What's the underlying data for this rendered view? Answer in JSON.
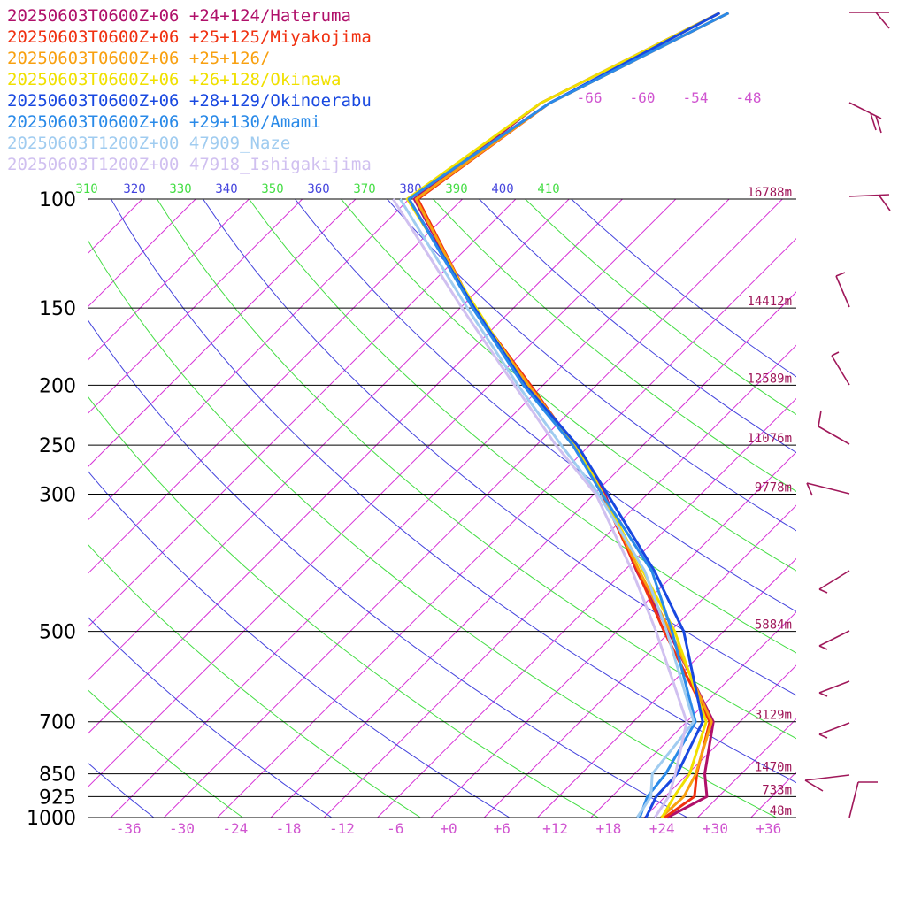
{
  "chart_data": {
    "type": "line",
    "title": "",
    "xlabel": "",
    "ylabel": "",
    "x_axis": {
      "ticks": [
        "-36",
        "-30",
        "-24",
        "-18",
        "-12",
        "-6",
        "+0",
        "+6",
        "+12",
        "+18",
        "+24",
        "+30",
        "+36"
      ],
      "values": [
        -36,
        -30,
        -24,
        -18,
        -12,
        -6,
        0,
        6,
        12,
        18,
        24,
        30,
        36
      ],
      "range": [
        -40,
        40
      ]
    },
    "pressure_levels": [
      {
        "p": 100,
        "label": "100",
        "height": "16788m"
      },
      {
        "p": 150,
        "label": "150",
        "height": "14412m"
      },
      {
        "p": 200,
        "label": "200",
        "height": "12589m"
      },
      {
        "p": 250,
        "label": "250",
        "height": "11076m"
      },
      {
        "p": 300,
        "label": "300",
        "height": "9778m"
      },
      {
        "p": 500,
        "label": "500",
        "height": "5884m"
      },
      {
        "p": 700,
        "label": "700",
        "height": "3129m"
      },
      {
        "p": 850,
        "label": "850",
        "height": "1470m"
      },
      {
        "p": 925,
        "label": "925",
        "height": "733m"
      },
      {
        "p": 1000,
        "label": "1000",
        "height": "48m"
      }
    ],
    "mixing_ratio_labels": [
      "-66",
      "-60",
      "-54",
      "-48"
    ],
    "theta_labels": [
      {
        "text": "310",
        "color": "#44dd44"
      },
      {
        "text": "320",
        "color": "#4444dd"
      },
      {
        "text": "330",
        "color": "#44dd44"
      },
      {
        "text": "340",
        "color": "#4444dd"
      },
      {
        "text": "350",
        "color": "#44dd44"
      },
      {
        "text": "360",
        "color": "#4444dd"
      },
      {
        "text": "370",
        "color": "#44dd44"
      },
      {
        "text": "380",
        "color": "#4444dd"
      },
      {
        "text": "390",
        "color": "#44dd44"
      },
      {
        "text": "400",
        "color": "#4444dd"
      },
      {
        "text": "410",
        "color": "#44dd44"
      }
    ],
    "grid": true,
    "legend_position": "top-left",
    "series": [
      {
        "name": "20250603T0600Z+06 +24+124/Hateruma",
        "color": "#b0106a",
        "points": [
          [
            1000,
            24.6
          ],
          [
            925,
            26.7
          ],
          [
            850,
            23.9
          ],
          [
            700,
            19.0
          ],
          [
            500,
            3.8
          ],
          [
            400,
            -6.5
          ],
          [
            300,
            -18.8
          ],
          [
            250,
            -27.8
          ],
          [
            200,
            -39.4
          ],
          [
            150,
            -54.5
          ],
          [
            100,
            -73.4
          ],
          [
            70,
            -70
          ],
          [
            50,
            -60
          ]
        ]
      },
      {
        "name": "20250603T0600Z+06 +25+125/Miyakojima",
        "color": "#f03010",
        "points": [
          [
            1000,
            24.3
          ],
          [
            925,
            25.3
          ],
          [
            850,
            23.0
          ],
          [
            700,
            18.6
          ],
          [
            500,
            3.3
          ],
          [
            400,
            -6.4
          ],
          [
            300,
            -19.1
          ],
          [
            250,
            -27.8
          ],
          [
            200,
            -39.4
          ],
          [
            150,
            -54.5
          ],
          [
            100,
            -73
          ],
          [
            70,
            -69
          ],
          [
            50,
            -59
          ]
        ]
      },
      {
        "name": "20250603T0600Z+06 +25+126/",
        "color": "#f8a010",
        "points": [
          [
            1000,
            23.9
          ],
          [
            925,
            24.1
          ],
          [
            850,
            22.9
          ],
          [
            700,
            18.8
          ],
          [
            500,
            4.0
          ],
          [
            400,
            -6.2
          ],
          [
            300,
            -19.0
          ],
          [
            250,
            -27.7
          ],
          [
            200,
            -39.6
          ],
          [
            150,
            -54.5
          ],
          [
            100,
            -73.2
          ],
          [
            70,
            -69
          ],
          [
            50,
            -59
          ]
        ]
      },
      {
        "name": "20250603T0600Z+06 +26+128/Okinawa",
        "color": "#f0e000",
        "points": [
          [
            1000,
            24.0
          ],
          [
            925,
            23.0
          ],
          [
            850,
            22.2
          ],
          [
            700,
            18.2
          ],
          [
            500,
            4.5
          ],
          [
            400,
            -5.8
          ],
          [
            300,
            -19.0
          ],
          [
            250,
            -27.5
          ],
          [
            200,
            -40.0
          ],
          [
            150,
            -54.2
          ],
          [
            100,
            -74.2
          ],
          [
            70,
            -70
          ],
          [
            50,
            -60
          ]
        ]
      },
      {
        "name": "20250603T0600Z+06 +28+129/Okinoerabu",
        "color": "#1848e0",
        "points": [
          [
            1000,
            22.2
          ],
          [
            925,
            21.0
          ],
          [
            850,
            20.8
          ],
          [
            700,
            17.8
          ],
          [
            500,
            5.5
          ],
          [
            400,
            -4.5
          ],
          [
            300,
            -18.5
          ],
          [
            250,
            -27.4
          ],
          [
            200,
            -40.0
          ],
          [
            150,
            -54.4
          ],
          [
            100,
            -74.0
          ],
          [
            70,
            -69
          ],
          [
            50,
            -60
          ]
        ]
      },
      {
        "name": "20250603T0600Z+06 +29+130/Amami",
        "color": "#2a8ae8",
        "points": [
          [
            1000,
            21.5
          ],
          [
            925,
            20.0
          ],
          [
            850,
            19.5
          ],
          [
            700,
            17.0
          ],
          [
            500,
            4.2
          ],
          [
            400,
            -4.8
          ],
          [
            300,
            -19.1
          ],
          [
            250,
            -27.9
          ],
          [
            200,
            -40.2
          ],
          [
            150,
            -54.6
          ],
          [
            100,
            -74.0
          ],
          [
            70,
            -69
          ],
          [
            50,
            -59
          ]
        ]
      },
      {
        "name": "20250603T1200Z+00 47909_Naze",
        "color": "#a0ccf0",
        "points": [
          [
            1000,
            21.2
          ],
          [
            925,
            20.4
          ],
          [
            850,
            18.0
          ],
          [
            700,
            16.8
          ],
          [
            500,
            3.6
          ],
          [
            400,
            -5.6
          ],
          [
            300,
            -19.5
          ],
          [
            250,
            -29.2
          ],
          [
            200,
            -40.8
          ],
          [
            150,
            -55.2
          ],
          [
            100,
            -75.0
          ]
        ]
      },
      {
        "name": "20250603T1200Z+00 47918_Ishigakijima",
        "color": "#d0c0f0",
        "points": [
          [
            1000,
            23.2
          ],
          [
            925,
            22.4
          ],
          [
            850,
            20.6
          ],
          [
            700,
            16.0
          ],
          [
            500,
            2.4
          ],
          [
            400,
            -7.0
          ],
          [
            300,
            -19.8
          ],
          [
            250,
            -29.8
          ],
          [
            200,
            -41.2
          ],
          [
            150,
            -55.8
          ],
          [
            100,
            -75.8
          ]
        ]
      }
    ]
  }
}
